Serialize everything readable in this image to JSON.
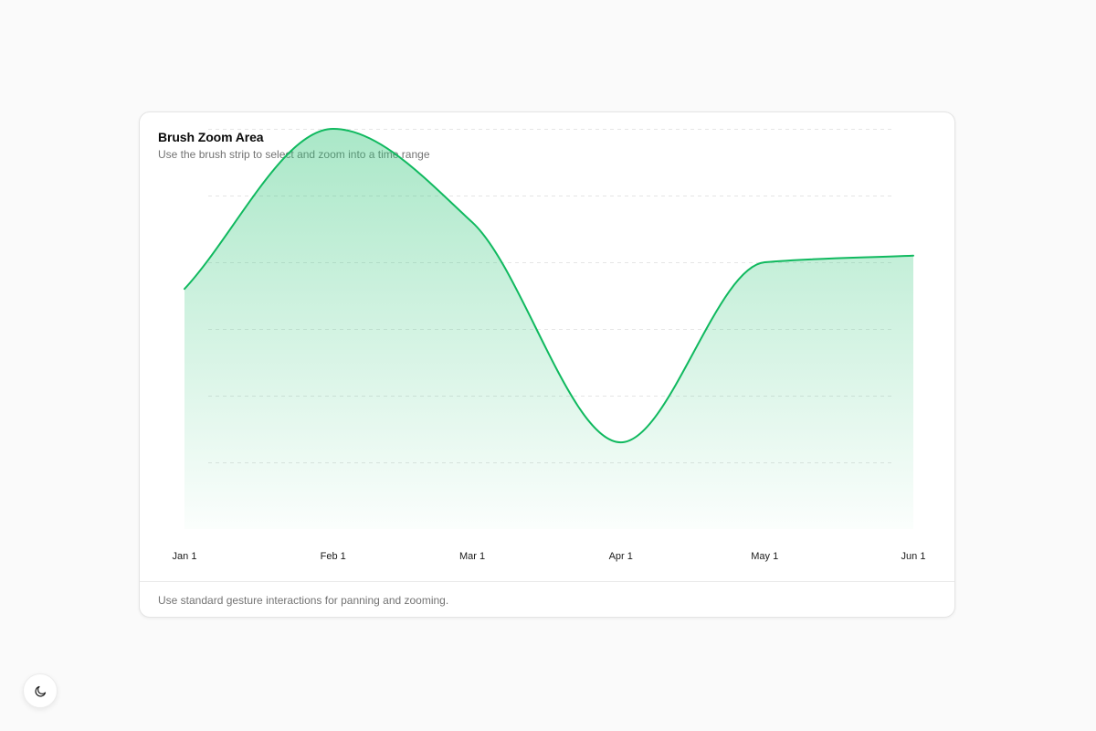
{
  "card": {
    "title": "Brush Zoom Area",
    "subtitle": "Use the brush strip to select and zoom into a time range",
    "footer": "Use standard gesture interactions for panning and zooming."
  },
  "theme_toggle": {
    "icon": "moon-icon"
  },
  "colors": {
    "line": "#10b95f",
    "fill": "#34c77b",
    "grid": "#e5e5e5"
  },
  "chart_data": {
    "type": "area",
    "title": "Brush Zoom Area",
    "subtitle": "Use the brush strip to select and zoom into a time range",
    "xlabel": "",
    "ylabel": "",
    "grid": true,
    "legend": "none",
    "x_ticks": [
      "Jan 1",
      "Feb 1",
      "Mar 1",
      "Apr 1",
      "May 1",
      "Jun 1"
    ],
    "x": [
      "2024-01-01",
      "2024-02-01",
      "2024-03-01",
      "2024-04-01",
      "2024-05-01",
      "2024-06-01"
    ],
    "ylim": [
      0,
      70
    ],
    "series": [
      {
        "values": [
          36,
          60,
          46,
          13,
          40,
          41
        ]
      }
    ]
  }
}
